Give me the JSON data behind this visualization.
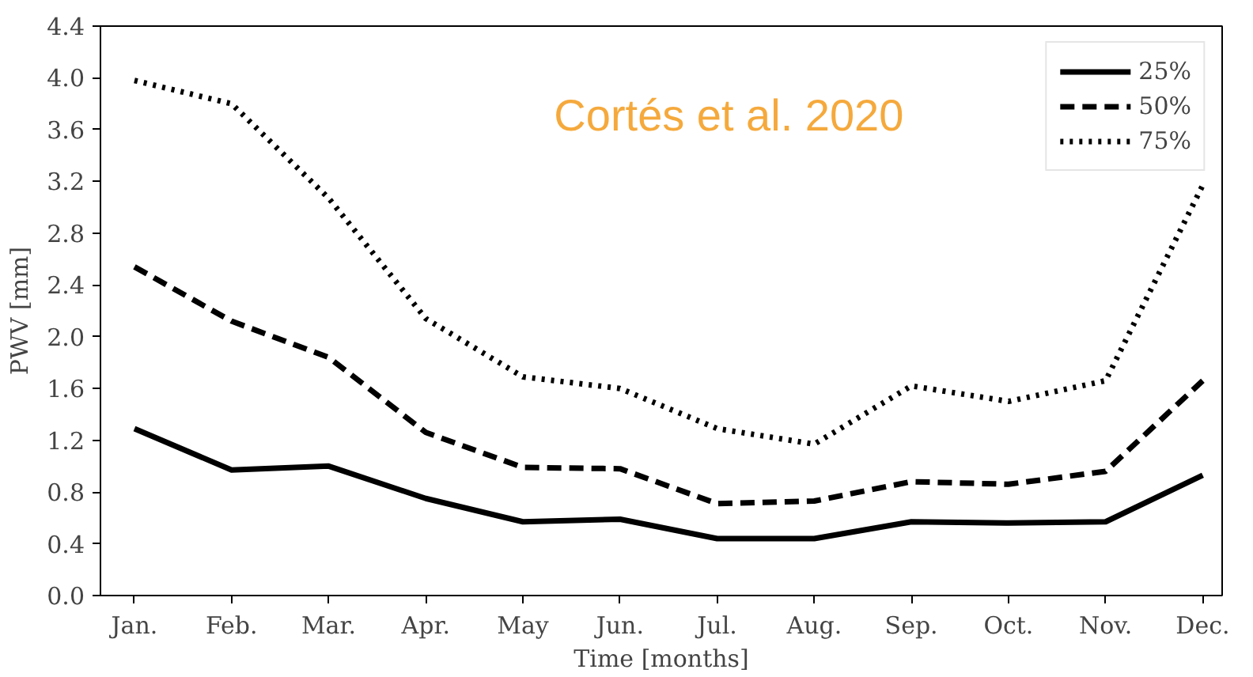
{
  "chart_data": {
    "type": "line",
    "xlabel": "Time [months]",
    "ylabel": "PWV [mm]",
    "categories": [
      "Jan.",
      "Feb.",
      "Mar.",
      "Apr.",
      "May",
      "Jun.",
      "Jul.",
      "Aug.",
      "Sep.",
      "Oct.",
      "Nov.",
      "Dec."
    ],
    "ylim": [
      0,
      4.4
    ],
    "yticks": [
      {
        "value": 0,
        "label": "0.0"
      },
      0.4,
      0.8,
      1.2,
      1.6,
      {
        "value": 2,
        "label": "2.0"
      },
      2.4,
      2.8,
      3.2,
      3.6,
      {
        "value": 4,
        "label": "4.0"
      },
      4.4
    ],
    "legend": "top right",
    "grid": false,
    "marker": "none",
    "annotations": [
      "Cortés et al. 2020"
    ],
    "series": [
      {
        "name": "25%",
        "color": "#000000",
        "line_style": "solid",
        "values": [
          1.29,
          0.97,
          1.0,
          0.75,
          0.57,
          0.59,
          0.44,
          0.44,
          0.57,
          0.56,
          0.57,
          0.93
        ]
      },
      {
        "name": "50%",
        "color": "#000000",
        "line_style": "dashed",
        "values": [
          2.54,
          2.12,
          1.84,
          1.26,
          0.99,
          0.98,
          0.71,
          0.73,
          0.88,
          0.86,
          0.96,
          1.66
        ]
      },
      {
        "name": "75%",
        "color": "#000000",
        "line_style": "dotted",
        "values": [
          3.98,
          3.8,
          3.07,
          2.14,
          1.69,
          1.6,
          1.29,
          1.17,
          1.62,
          1.5,
          1.66,
          3.17
        ]
      }
    ]
  }
}
